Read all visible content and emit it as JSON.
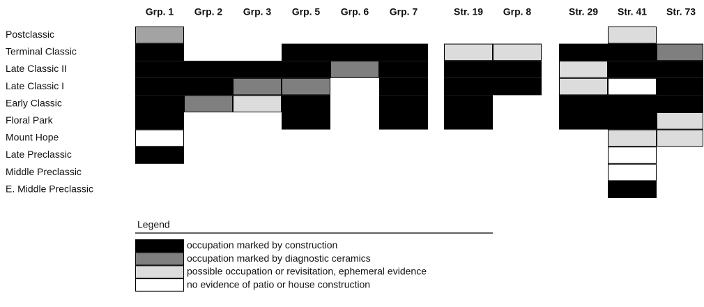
{
  "title_columns": [
    "Grp. 1",
    "Grp. 2",
    "Grp. 3",
    "Grp. 5",
    "Grp. 6",
    "Grp. 7",
    "Str. 19",
    "Grp. 8",
    "Str. 29",
    "Str. 41",
    "Str. 73"
  ],
  "rows": [
    {
      "label": "Postclassic",
      "cells": [
        "#a3a3a3",
        null,
        null,
        null,
        null,
        null,
        null,
        null,
        null,
        "#dcdcdc",
        null
      ]
    },
    {
      "label": "Terminal Classic",
      "cells": [
        "#000000",
        null,
        null,
        "#000000",
        "#000000",
        "#000000",
        "#dcdcdc",
        "#dcdcdc",
        "#000000",
        "#000000",
        "#7f7f7f"
      ]
    },
    {
      "label": "Late Classic II",
      "cells": [
        "#000000",
        "#000000",
        "#000000",
        "#000000",
        "#7f7f7f",
        "#000000",
        "#000000",
        "#000000",
        "#dcdcdc",
        "#000000",
        "#000000"
      ]
    },
    {
      "label": "Late Classic I",
      "cells": [
        "#000000",
        "#000000",
        "#7f7f7f",
        "#7f7f7f",
        null,
        "#000000",
        "#000000",
        "#000000",
        "#dcdcdc",
        "#ffffff",
        "#000000"
      ]
    },
    {
      "label": "Early Classic",
      "cells": [
        "#000000",
        "#7f7f7f",
        "#dcdcdc",
        "#000000",
        null,
        "#000000",
        "#000000",
        null,
        "#000000",
        "#000000",
        "#000000"
      ]
    },
    {
      "label": "Floral Park",
      "cells": [
        "#000000",
        null,
        null,
        "#000000",
        null,
        "#000000",
        "#000000",
        null,
        "#000000",
        "#000000",
        "#dcdcdc"
      ]
    },
    {
      "label": "Mount Hope",
      "cells": [
        "#ffffff",
        null,
        null,
        null,
        null,
        null,
        null,
        null,
        null,
        "#dcdcdc",
        "#dcdcdc"
      ]
    },
    {
      "label": "Late Preclassic",
      "cells": [
        "#000000",
        null,
        null,
        null,
        null,
        null,
        null,
        null,
        null,
        "#ffffff",
        null
      ]
    },
    {
      "label": "Middle Preclassic",
      "cells": [
        null,
        null,
        null,
        null,
        null,
        null,
        null,
        null,
        null,
        "#ffffff",
        null
      ]
    },
    {
      "label": "E. Middle Preclassic",
      "cells": [
        null,
        null,
        null,
        null,
        null,
        null,
        null,
        null,
        null,
        "#000000",
        null
      ]
    }
  ],
  "legend": {
    "title": "Legend",
    "items": [
      {
        "color": "#000000",
        "label": "occupation marked by construction"
      },
      {
        "color": "#7f7f7f",
        "label": "occupation marked by diagnostic ceramics"
      },
      {
        "color": "#dcdcdc",
        "label": "possible occupation or revisitation, ephemeral evidence"
      },
      {
        "color": "#ffffff",
        "label": "no evidence of patio or house construction"
      }
    ]
  }
}
